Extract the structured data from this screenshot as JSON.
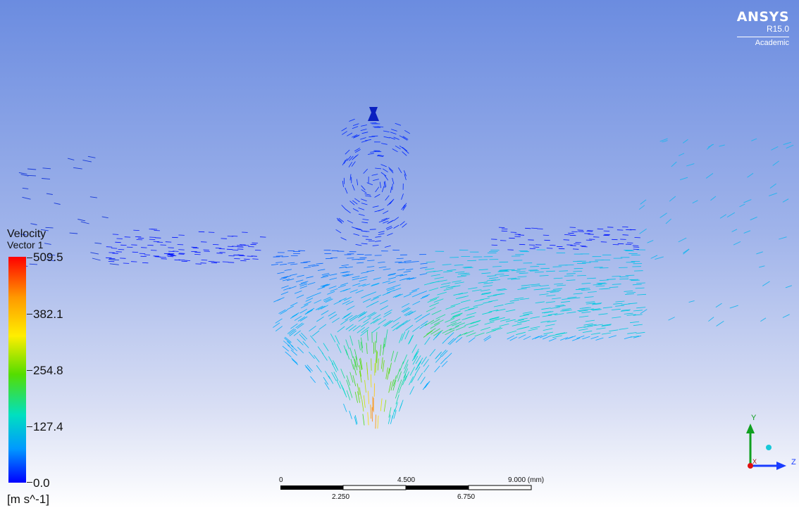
{
  "logo": {
    "brand": "ANSYS",
    "version": "R15.0",
    "edition": "Academic"
  },
  "legend": {
    "title_line1": "Velocity",
    "title_line2": "Vector 1",
    "ticks": [
      "509.5",
      "382.1",
      "254.8",
      "127.4",
      "0.0"
    ],
    "unit": "[m s^-1]"
  },
  "scale_bar": {
    "top_labels": [
      "0",
      "4.500",
      "9.000 (mm)"
    ],
    "bottom_labels": [
      "2.250",
      "6.750"
    ]
  },
  "triad": {
    "y": "Y",
    "z": "Z",
    "x": "X"
  },
  "colors": {
    "background_top": "#6b8ce0",
    "background_bottom": "#ffffff",
    "vector_low": "#0000ff",
    "vector_high": "#ff0000"
  }
}
